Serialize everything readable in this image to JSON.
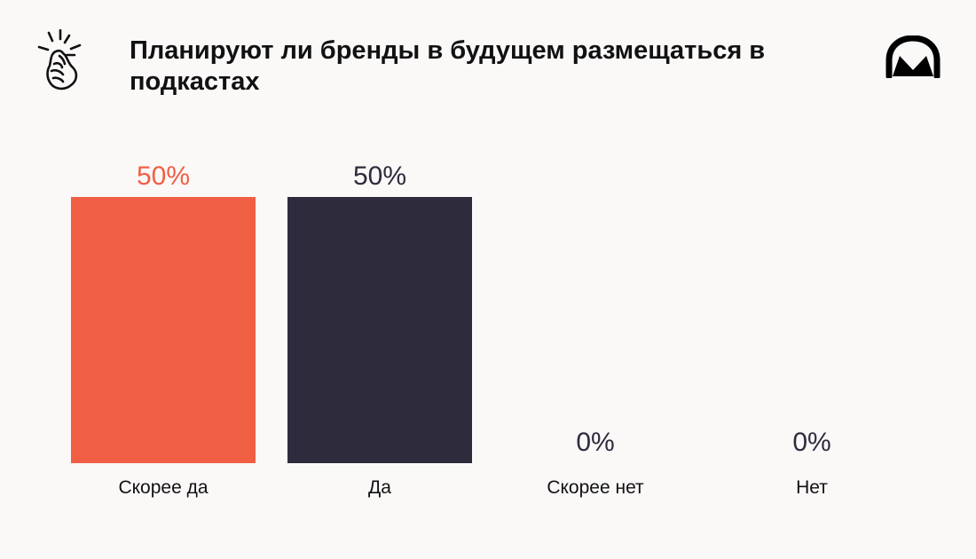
{
  "header": {
    "title": "Планируют ли бренды в будущем размещаться в подкастах",
    "left_icon": "snapping-hand-icon",
    "right_logo": "headphones-logo-icon"
  },
  "colors": {
    "background": "#fbf8f8",
    "accent": "#f05f44",
    "dark": "#2e2b3d",
    "text": "#111111"
  },
  "chart_data": {
    "type": "bar",
    "categories": [
      "Скорее да",
      "Да",
      "Скорее нет",
      "Нет"
    ],
    "values": [
      50,
      50,
      0,
      0
    ],
    "value_labels": [
      "50%",
      "50%",
      "0%",
      "0%"
    ],
    "colors": [
      "#f05f44",
      "#2e2b3d",
      "#2e2b3d",
      "#2e2b3d"
    ],
    "label_colors": [
      "#f05f44",
      "#2e2b3d",
      "#2e2b3d",
      "#2e2b3d"
    ],
    "unit": "%",
    "ylim": [
      0,
      50
    ],
    "grid": false,
    "legend": "none"
  }
}
